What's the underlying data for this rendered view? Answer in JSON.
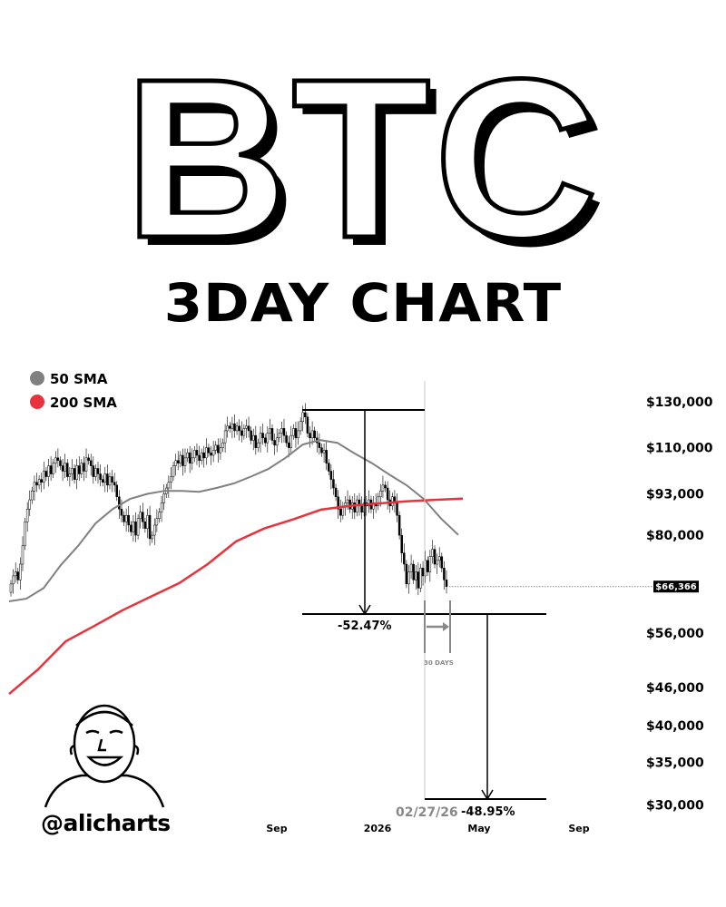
{
  "title": "BTC",
  "subtitle": "3DAY CHART",
  "handle": "@alicharts",
  "chart_data": {
    "type": "candlestick",
    "title": "BTC",
    "subtitle": "3DAY CHART",
    "y_scale": "log",
    "ylim": [
      30000,
      130000
    ],
    "y_ticks": [
      130000,
      110000,
      93000,
      80000,
      56000,
      46000,
      40000,
      35000,
      30000
    ],
    "y_tick_labels": [
      "$130,000",
      "$110,000",
      "$93,000",
      "$80,000",
      "$56,000",
      "$46,000",
      "$40,000",
      "$35,000",
      "$30,000"
    ],
    "x_tick_labels": [
      "Sep",
      "2026",
      "May",
      "Sep"
    ],
    "grid": false,
    "legend": {
      "placement": "top-left",
      "entries": [
        {
          "name": "50 SMA",
          "color": "#808080"
        },
        {
          "name": "200 SMA",
          "color": "#e8323c"
        }
      ]
    },
    "candle_close": [
      67,
      69,
      70,
      68,
      72,
      77,
      84,
      88,
      91,
      94,
      97,
      96,
      98,
      97,
      101,
      99,
      103,
      100,
      104,
      106,
      105,
      103,
      101,
      104,
      99,
      100,
      102,
      98,
      103,
      100,
      104,
      101,
      106,
      105,
      103,
      99,
      102,
      100,
      98,
      97,
      100,
      96,
      99,
      97,
      96,
      92,
      88,
      86,
      84,
      86,
      83,
      81,
      84,
      80,
      85,
      87,
      84,
      82,
      86,
      79,
      80,
      83,
      85,
      87,
      90,
      93,
      95,
      97,
      99,
      103,
      105,
      104,
      107,
      103,
      106,
      108,
      104,
      106,
      109,
      107,
      105,
      108,
      106,
      110,
      108,
      107,
      109,
      111,
      108,
      110,
      112,
      117,
      119,
      118,
      120,
      117,
      119,
      117,
      115,
      118,
      119,
      117,
      113,
      115,
      110,
      112,
      116,
      114,
      112,
      116,
      118,
      113,
      111,
      114,
      116,
      118,
      115,
      112,
      110,
      115,
      118,
      114,
      117,
      121,
      125,
      123,
      116,
      114,
      117,
      114,
      112,
      110,
      108,
      109,
      104,
      101,
      98,
      95,
      92,
      88,
      86,
      89,
      90,
      91,
      88,
      90,
      87,
      91,
      89,
      87,
      90,
      89,
      91,
      88,
      90,
      89,
      92,
      94,
      96,
      95,
      91,
      89,
      92,
      90,
      86,
      80,
      75,
      72,
      67,
      70,
      72,
      68,
      70,
      66,
      71,
      69,
      73,
      70,
      74,
      76,
      72,
      73,
      74,
      71,
      68,
      66.366
    ],
    "candle_close_unit": "thousand USD",
    "sma_50": [
      62.9,
      63.5,
      66,
      71.8,
      77,
      83.5,
      88,
      91.3,
      93,
      94,
      94,
      93.7,
      95,
      96.6,
      99,
      101.8,
      106,
      111.3,
      113.1,
      112,
      107.7,
      104,
      99.8,
      96,
      91.3,
      85,
      80.1
    ],
    "sma_200": [
      44.9,
      49,
      54.4,
      57.5,
      60.9,
      64,
      67.2,
      72,
      78.2,
      82,
      84.7,
      87.8,
      89,
      89.8,
      90.5,
      91,
      91.4
    ],
    "current_price": 66366,
    "current_price_label": "$66,366",
    "annotations": {
      "drop_1": "-52.47%",
      "drop_2": "-48.95%",
      "date_marker": "02/27/26",
      "range_label": "30 DAYS"
    },
    "colors": {
      "sma_50": "#808080",
      "sma_200": "#e8323c",
      "candles": "#000000"
    }
  }
}
